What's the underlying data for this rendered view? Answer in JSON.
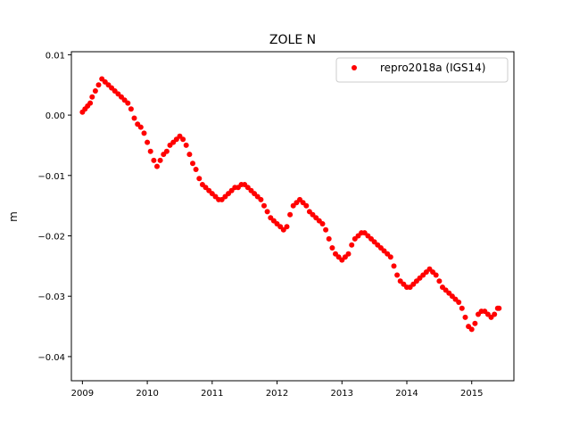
{
  "chart_data": {
    "type": "scatter",
    "title": "ZOLE N",
    "xlabel": "",
    "ylabel": "m",
    "xlim": [
      2008.83,
      2015.65
    ],
    "ylim": [
      -0.044,
      0.0105
    ],
    "x_ticks": [
      2009,
      2010,
      2011,
      2012,
      2013,
      2014,
      2015
    ],
    "x_tick_labels": [
      "2009",
      "2010",
      "2011",
      "2012",
      "2013",
      "2014",
      "2015"
    ],
    "y_ticks": [
      0.01,
      0.0,
      -0.01,
      -0.02,
      -0.03,
      -0.04
    ],
    "y_tick_labels": [
      "0.01",
      "0.00",
      "−0.01",
      "−0.02",
      "−0.03",
      "−0.04"
    ],
    "grid": false,
    "legend_position": "top-right",
    "series": [
      {
        "name": "repro2018a (IGS14)",
        "color": "#ff0000",
        "marker": "circle",
        "x": [
          2009.0,
          2009.04,
          2009.08,
          2009.12,
          2009.15,
          2009.2,
          2009.25,
          2009.3,
          2009.35,
          2009.4,
          2009.45,
          2009.5,
          2009.55,
          2009.6,
          2009.65,
          2009.7,
          2009.75,
          2009.8,
          2009.85,
          2009.9,
          2009.95,
          2010.0,
          2010.05,
          2010.1,
          2010.15,
          2010.2,
          2010.25,
          2010.3,
          2010.35,
          2010.4,
          2010.45,
          2010.5,
          2010.55,
          2010.6,
          2010.65,
          2010.7,
          2010.75,
          2010.8,
          2010.85,
          2010.9,
          2010.95,
          2011.0,
          2011.05,
          2011.1,
          2011.15,
          2011.2,
          2011.25,
          2011.3,
          2011.35,
          2011.4,
          2011.45,
          2011.5,
          2011.55,
          2011.6,
          2011.65,
          2011.7,
          2011.75,
          2011.8,
          2011.85,
          2011.9,
          2011.95,
          2012.0,
          2012.05,
          2012.1,
          2012.15,
          2012.2,
          2012.25,
          2012.3,
          2012.35,
          2012.4,
          2012.45,
          2012.5,
          2012.55,
          2012.6,
          2012.65,
          2012.7,
          2012.75,
          2012.8,
          2012.85,
          2012.9,
          2012.95,
          2013.0,
          2013.05,
          2013.1,
          2013.15,
          2013.2,
          2013.25,
          2013.3,
          2013.35,
          2013.4,
          2013.45,
          2013.5,
          2013.55,
          2013.6,
          2013.65,
          2013.7,
          2013.75,
          2013.8,
          2013.85,
          2013.9,
          2013.95,
          2014.0,
          2014.05,
          2014.1,
          2014.15,
          2014.2,
          2014.25,
          2014.3,
          2014.35,
          2014.4,
          2014.45,
          2014.5,
          2014.55,
          2014.6,
          2014.65,
          2014.7,
          2014.75,
          2014.8,
          2014.85,
          2014.9,
          2014.95,
          2015.0,
          2015.05,
          2015.1,
          2015.15,
          2015.2,
          2015.25,
          2015.3,
          2015.35,
          2015.4,
          2015.42
        ],
        "y": [
          0.0005,
          0.001,
          0.0015,
          0.002,
          0.003,
          0.004,
          0.005,
          0.006,
          0.0055,
          0.005,
          0.0045,
          0.004,
          0.0035,
          0.003,
          0.0025,
          0.002,
          0.001,
          -0.0005,
          -0.0015,
          -0.002,
          -0.003,
          -0.0045,
          -0.006,
          -0.0075,
          -0.0085,
          -0.0075,
          -0.0065,
          -0.006,
          -0.005,
          -0.0045,
          -0.004,
          -0.0035,
          -0.004,
          -0.005,
          -0.0065,
          -0.008,
          -0.009,
          -0.0105,
          -0.0115,
          -0.012,
          -0.0125,
          -0.013,
          -0.0135,
          -0.014,
          -0.014,
          -0.0135,
          -0.013,
          -0.0125,
          -0.012,
          -0.012,
          -0.0115,
          -0.0115,
          -0.012,
          -0.0125,
          -0.013,
          -0.0135,
          -0.014,
          -0.015,
          -0.016,
          -0.017,
          -0.0175,
          -0.018,
          -0.0185,
          -0.019,
          -0.0185,
          -0.0165,
          -0.015,
          -0.0145,
          -0.014,
          -0.0145,
          -0.015,
          -0.016,
          -0.0165,
          -0.017,
          -0.0175,
          -0.018,
          -0.019,
          -0.0205,
          -0.022,
          -0.023,
          -0.0235,
          -0.024,
          -0.0235,
          -0.023,
          -0.0215,
          -0.0205,
          -0.02,
          -0.0195,
          -0.0195,
          -0.02,
          -0.0205,
          -0.021,
          -0.0215,
          -0.022,
          -0.0225,
          -0.023,
          -0.0235,
          -0.025,
          -0.0265,
          -0.0275,
          -0.028,
          -0.0285,
          -0.0285,
          -0.028,
          -0.0275,
          -0.027,
          -0.0265,
          -0.026,
          -0.0255,
          -0.026,
          -0.0265,
          -0.0275,
          -0.0285,
          -0.029,
          -0.0295,
          -0.03,
          -0.0305,
          -0.031,
          -0.032,
          -0.0335,
          -0.035,
          -0.0355,
          -0.0345,
          -0.033,
          -0.0325,
          -0.0325,
          -0.033,
          -0.0335,
          -0.033,
          -0.032,
          -0.032
        ]
      }
    ]
  }
}
